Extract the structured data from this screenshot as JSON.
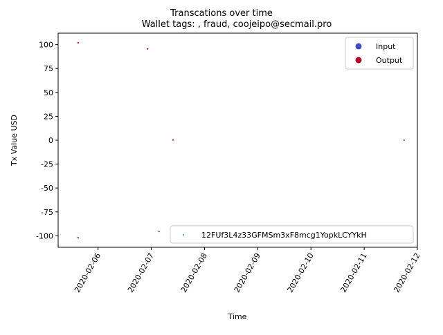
{
  "chart_data": {
    "type": "scatter",
    "suptitle": "Transcations over time",
    "title": "Wallet tags: , fraud, coojeipo@secmail.pro",
    "xlabel": "Time",
    "ylabel": "Tx Value USD",
    "xlim": [
      "2020-02-05 06:00",
      "2020-02-12 00:00"
    ],
    "ylim": [
      -112,
      112
    ],
    "x_ticks": [
      "2020-02-06",
      "2020-02-07",
      "2020-02-08",
      "2020-02-09",
      "2020-02-10",
      "2020-02-11",
      "2020-02-12"
    ],
    "y_ticks": [
      -100,
      -75,
      -50,
      -25,
      0,
      25,
      50,
      75,
      100
    ],
    "grid": false,
    "legend_color": {
      "location": "top-right",
      "entries": [
        {
          "label": "Input",
          "color": "#3b4cc0"
        },
        {
          "label": "Output",
          "color": "#b40426"
        }
      ]
    },
    "legend_address": {
      "location": "bottom-right",
      "entries": [
        {
          "label": "12FUf3L4z33GFMSm3xF8mcg1YopkLCYYkH",
          "color": "#1a9e86"
        }
      ]
    },
    "points": [
      {
        "x": "2020-02-05 15:00",
        "y": 102,
        "color": "#b40426"
      },
      {
        "x": "2020-02-05 15:00",
        "y": -102,
        "color": "#7a2a6a"
      },
      {
        "x": "2020-02-06 22:20",
        "y": 95.5,
        "color": "#b40426"
      },
      {
        "x": "2020-02-07 03:30",
        "y": -95.5,
        "color": "#7a2a6a"
      },
      {
        "x": "2020-02-07 09:50",
        "y": 0.3,
        "color": "#b40426"
      },
      {
        "x": "2020-02-11 18:00",
        "y": 0.1,
        "color": "#6a3aa6"
      }
    ]
  }
}
